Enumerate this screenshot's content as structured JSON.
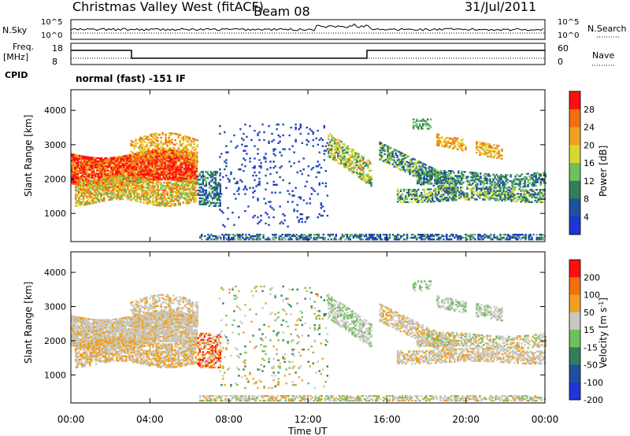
{
  "header": {
    "station": "Christmas Valley West (fitACF)",
    "beam": "Beam 08",
    "date": "31/Jul/2011"
  },
  "top_panels": {
    "noise": {
      "left_label": "N.Sky",
      "right_label": "N.Search",
      "left_ticks": [
        "10^5",
        "10^0"
      ],
      "right_ticks": [
        "10^5",
        "10^0"
      ]
    },
    "freq": {
      "left_label_1": "Freq.",
      "left_label_2": "[MHz]",
      "right_label": "Nave",
      "left_ticks": [
        "18",
        "8"
      ],
      "right_ticks": [
        "60",
        "0"
      ]
    },
    "cpid": {
      "label": "CPID",
      "text": "normal (fast) -151 IF"
    }
  },
  "colors": {
    "power": [
      "#1f35d6",
      "#1f50a0",
      "#2f7f5a",
      "#6fbf5f",
      "#d8d830",
      "#f0a020",
      "#f07010",
      "#ff1010"
    ],
    "velocity": [
      "#1f35d6",
      "#1f50a0",
      "#2f7f5a",
      "#6fbf5f",
      "#c8c8c0",
      "#f0a020",
      "#f07010",
      "#ff1010"
    ]
  },
  "chart_data": [
    {
      "type": "heatmap",
      "ylabel": "Slant Range [km]",
      "xlabel": "Time UT",
      "x_tick_labels": [
        "00:00",
        "04:00",
        "08:00",
        "12:00",
        "16:00",
        "20:00",
        "00:00"
      ],
      "x_ticks": [
        0,
        4,
        8,
        12,
        16,
        20,
        24
      ],
      "xlim": [
        0,
        24
      ],
      "y_ticks": [
        1000,
        2000,
        3000,
        4000
      ],
      "ylim": [
        180,
        4600
      ],
      "colorbar": {
        "label": "Power [dB]",
        "tick_labels": [
          "28",
          "24",
          "20",
          "16",
          "12",
          "8",
          "4"
        ]
      }
    },
    {
      "type": "heatmap",
      "ylabel": "Slant Range [km]",
      "xlabel": "Time UT",
      "x_tick_labels": [
        "00:00",
        "04:00",
        "08:00",
        "12:00",
        "16:00",
        "20:00",
        "00:00"
      ],
      "x_ticks": [
        0,
        4,
        8,
        12,
        16,
        20,
        24
      ],
      "xlim": [
        0,
        24
      ],
      "y_ticks": [
        1000,
        2000,
        3000,
        4000
      ],
      "ylim": [
        180,
        4600
      ],
      "colorbar": {
        "label": "Velocity [m s^-1]",
        "tick_labels": [
          "200",
          "100",
          "50",
          "15",
          "-15",
          "-50",
          "-100",
          "-200"
        ]
      }
    }
  ],
  "x_axis_label": "Time UT"
}
